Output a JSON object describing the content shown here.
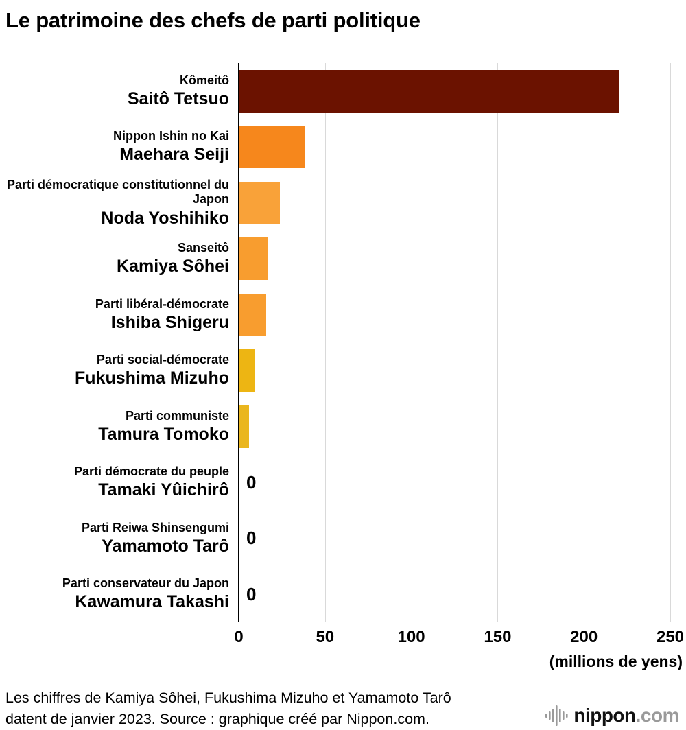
{
  "title": "Le patrimoine des chefs de parti politique",
  "chart_data": {
    "type": "bar",
    "orientation": "horizontal",
    "title": "Le patrimoine des chefs de parti politique",
    "unit_label": "(millions de yens)",
    "xlim": [
      0,
      250
    ],
    "x_ticks": [
      0,
      50,
      100,
      150,
      200,
      250
    ],
    "grid": "vertical",
    "bars": [
      {
        "party": "Kômeitô",
        "name": "Saitô Tetsuo",
        "value": 220,
        "color": "#6b1200"
      },
      {
        "party": "Nippon Ishin no Kai",
        "name": "Maehara Seiji",
        "value": 38,
        "color": "#f6871c"
      },
      {
        "party": "Parti démocratique constitutionnel du Japon",
        "name": "Noda Yoshihiko",
        "value": 24,
        "color": "#f9a239"
      },
      {
        "party": "Sanseitô",
        "name": "Kamiya Sôhei",
        "value": 17,
        "color": "#f89d2f"
      },
      {
        "party": "Parti libéral-démocrate",
        "name": "Ishiba Shigeru",
        "value": 16,
        "color": "#f89d2f"
      },
      {
        "party": "Parti social-démocrate",
        "name": "Fukushima Mizuho",
        "value": 9,
        "color": "#edb513"
      },
      {
        "party": "Parti communiste",
        "name": "Tamura Tomoko",
        "value": 6,
        "color": "#eab61e"
      },
      {
        "party": "Parti démocrate du peuple",
        "name": "Tamaki Yûichirô",
        "value": 0,
        "color": "#f89d2f"
      },
      {
        "party": "Parti Reiwa Shinsengumi",
        "name": "Yamamoto Tarô",
        "value": 0,
        "color": "#f89d2f"
      },
      {
        "party": "Parti conservateur du Japon",
        "name": "Kawamura Takashi",
        "value": 0,
        "color": "#f89d2f"
      }
    ]
  },
  "footer": {
    "note_line1": "Les chiffres de Kamiya Sôhei, Fukushima Mizuho et Yamamoto Tarô",
    "note_line2": "datent de janvier 2023. Source : graphique créé par Nippon.com.",
    "logo_name": "nippon",
    "logo_tld": ".com"
  }
}
